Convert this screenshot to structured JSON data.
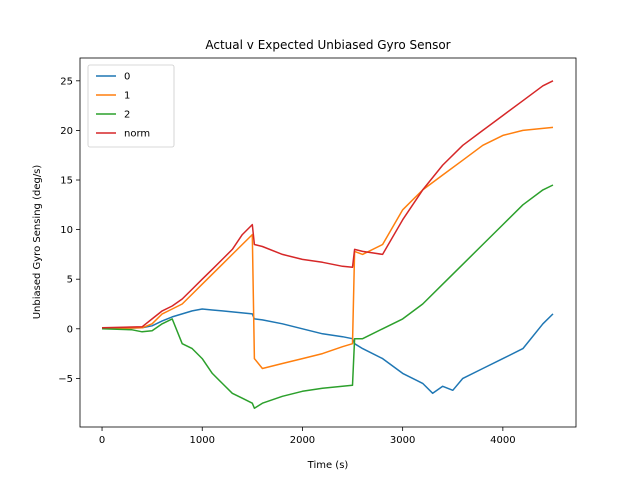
{
  "chart_data": {
    "type": "line",
    "title": "Actual v Expected Unbiased Gyro Sensor",
    "xlabel": "Time (s)",
    "ylabel": "Unbiased Gyro Sensing (deg/s)",
    "xlim": [
      -220,
      4730
    ],
    "ylim": [
      -9.9,
      27.3
    ],
    "xticks": [
      0,
      1000,
      2000,
      3000,
      4000
    ],
    "yticks": [
      -5,
      0,
      5,
      10,
      15,
      20,
      25
    ],
    "grid": false,
    "legend_position": "top-left",
    "series": [
      {
        "name": "0",
        "color": "#1f77b4",
        "x": [
          0,
          400,
          500,
          600,
          700,
          800,
          900,
          1000,
          1100,
          1200,
          1300,
          1400,
          1500,
          1520,
          1600,
          1800,
          2000,
          2200,
          2400,
          2500,
          2520,
          2600,
          2800,
          3000,
          3200,
          3300,
          3400,
          3500,
          3600,
          3800,
          4000,
          4200,
          4400,
          4500
        ],
        "y": [
          0,
          0.1,
          0.3,
          0.8,
          1.2,
          1.5,
          1.8,
          2.0,
          1.9,
          1.8,
          1.7,
          1.6,
          1.5,
          1.0,
          0.9,
          0.5,
          0,
          -0.5,
          -0.8,
          -1.0,
          -1.5,
          -2.0,
          -3.0,
          -4.5,
          -5.5,
          -6.5,
          -5.8,
          -6.2,
          -5.0,
          -4.0,
          -3.0,
          -2.0,
          0.5,
          1.5
        ]
      },
      {
        "name": "1",
        "color": "#ff7f0e",
        "x": [
          0,
          400,
          500,
          600,
          700,
          800,
          900,
          1000,
          1100,
          1200,
          1300,
          1400,
          1500,
          1520,
          1600,
          1800,
          2000,
          2200,
          2400,
          2500,
          2520,
          2600,
          2800,
          3000,
          3200,
          3400,
          3600,
          3800,
          4000,
          4200,
          4400,
          4500
        ],
        "y": [
          0,
          0.1,
          0.5,
          1.5,
          2.0,
          2.5,
          3.5,
          4.5,
          5.5,
          6.5,
          7.5,
          8.5,
          9.5,
          -3.0,
          -4.0,
          -3.5,
          -3.0,
          -2.5,
          -1.8,
          -1.5,
          7.8,
          7.5,
          8.5,
          12.0,
          14.0,
          15.5,
          17.0,
          18.5,
          19.5,
          20.0,
          20.2,
          20.3
        ]
      },
      {
        "name": "2",
        "color": "#2ca02c",
        "x": [
          0,
          300,
          400,
          500,
          600,
          700,
          800,
          900,
          1000,
          1100,
          1200,
          1300,
          1400,
          1500,
          1520,
          1600,
          1800,
          2000,
          2200,
          2400,
          2500,
          2520,
          2600,
          2800,
          3000,
          3200,
          3400,
          3600,
          3800,
          4000,
          4200,
          4400,
          4500
        ],
        "y": [
          0,
          -0.1,
          -0.3,
          -0.2,
          0.5,
          1.0,
          -1.5,
          -2.0,
          -3.0,
          -4.5,
          -5.5,
          -6.5,
          -7.0,
          -7.5,
          -8.0,
          -7.5,
          -6.8,
          -6.3,
          -6.0,
          -5.8,
          -5.7,
          -1.0,
          -1.0,
          0,
          1.0,
          2.5,
          4.5,
          6.5,
          8.5,
          10.5,
          12.5,
          14.0,
          14.5
        ]
      },
      {
        "name": "norm",
        "color": "#d62728",
        "x": [
          0,
          400,
          500,
          600,
          700,
          800,
          900,
          1000,
          1100,
          1200,
          1300,
          1400,
          1500,
          1520,
          1600,
          1800,
          2000,
          2200,
          2400,
          2500,
          2520,
          2600,
          2800,
          3000,
          3200,
          3400,
          3600,
          3800,
          4000,
          4200,
          4400,
          4500
        ],
        "y": [
          0.1,
          0.2,
          1.0,
          1.8,
          2.3,
          3.0,
          4.0,
          5.0,
          6.0,
          7.0,
          8.0,
          9.5,
          10.5,
          8.5,
          8.3,
          7.5,
          7.0,
          6.7,
          6.3,
          6.2,
          8.0,
          7.8,
          7.5,
          11.0,
          14.0,
          16.5,
          18.5,
          20.0,
          21.5,
          23.0,
          24.5,
          25.0
        ]
      }
    ]
  }
}
